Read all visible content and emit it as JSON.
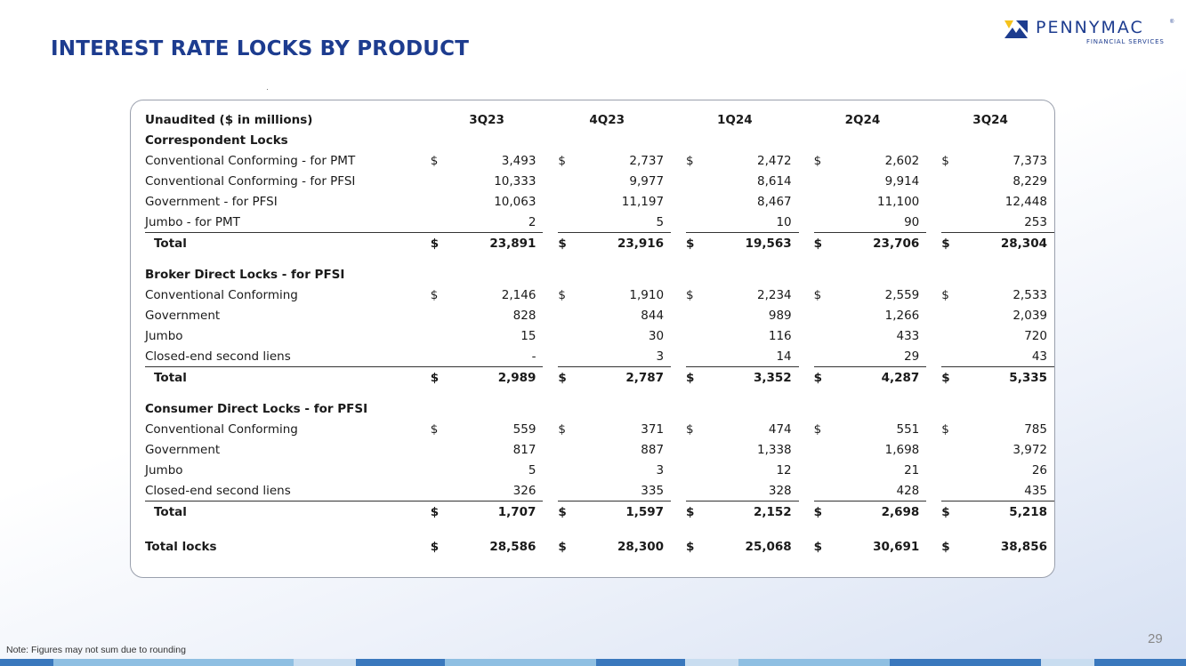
{
  "title": "INTEREST RATE LOCKS BY PRODUCT",
  "logo": {
    "name": "PENNYMAC",
    "sub": "FINANCIAL SERVICES",
    "tm": "®"
  },
  "table": {
    "header_label": "Unaudited ($ in millions)",
    "columns": [
      "3Q23",
      "4Q23",
      "1Q24",
      "2Q24",
      "3Q24"
    ],
    "sections": [
      {
        "title": "Correspondent Locks",
        "rows": [
          {
            "label": "Conventional Conforming - for PMT",
            "dollar": true,
            "values": [
              "3,493",
              "2,737",
              "2,472",
              "2,602",
              "7,373"
            ]
          },
          {
            "label": "Conventional Conforming - for PFSI",
            "dollar": false,
            "values": [
              "10,333",
              "9,977",
              "8,614",
              "9,914",
              "8,229"
            ]
          },
          {
            "label": "Government - for PFSI",
            "dollar": false,
            "values": [
              "10,063",
              "11,197",
              "8,467",
              "11,100",
              "12,448"
            ]
          },
          {
            "label": "Jumbo - for PMT",
            "dollar": false,
            "values": [
              "2",
              "5",
              "10",
              "90",
              "253"
            ]
          }
        ],
        "total": {
          "label": "Total",
          "values": [
            "23,891",
            "23,916",
            "19,563",
            "23,706",
            "28,304"
          ]
        }
      },
      {
        "title": "Broker Direct Locks - for PFSI",
        "rows": [
          {
            "label": "Conventional Conforming",
            "dollar": true,
            "values": [
              "2,146",
              "1,910",
              "2,234",
              "2,559",
              "2,533"
            ]
          },
          {
            "label": "Government",
            "dollar": false,
            "values": [
              "828",
              "844",
              "989",
              "1,266",
              "2,039"
            ]
          },
          {
            "label": "Jumbo",
            "dollar": false,
            "values": [
              "15",
              "30",
              "116",
              "433",
              "720"
            ]
          },
          {
            "label": "Closed-end second liens",
            "dollar": false,
            "values": [
              "-",
              "3",
              "14",
              "29",
              "43"
            ]
          }
        ],
        "total": {
          "label": "Total",
          "values": [
            "2,989",
            "2,787",
            "3,352",
            "4,287",
            "5,335"
          ]
        }
      },
      {
        "title": "Consumer Direct Locks - for PFSI",
        "rows": [
          {
            "label": "Conventional Conforming",
            "dollar": true,
            "values": [
              "559",
              "371",
              "474",
              "551",
              "785"
            ]
          },
          {
            "label": "Government",
            "dollar": false,
            "values": [
              "817",
              "887",
              "1,338",
              "1,698",
              "3,972"
            ]
          },
          {
            "label": "Jumbo",
            "dollar": false,
            "values": [
              "5",
              "3",
              "12",
              "21",
              "26"
            ]
          },
          {
            "label": "Closed-end second liens",
            "dollar": false,
            "values": [
              "326",
              "335",
              "328",
              "428",
              "435"
            ]
          }
        ],
        "total": {
          "label": "Total",
          "values": [
            "1,707",
            "1,597",
            "2,152",
            "2,698",
            "5,218"
          ]
        }
      }
    ],
    "grand_total": {
      "label": "Total locks",
      "values": [
        "28,586",
        "28,300",
        "25,068",
        "30,691",
        "38,856"
      ]
    },
    "currency_symbol": "$"
  },
  "footnote": "Note: Figures may not sum due to rounding",
  "page_number": "29",
  "colors": {
    "title": "#1d3c8f",
    "logo_yellow": "#f5c21b",
    "logo_blue": "#1d3c8f",
    "bar_light": "#7fb6de",
    "bar_dark": "#2f6fb6"
  }
}
